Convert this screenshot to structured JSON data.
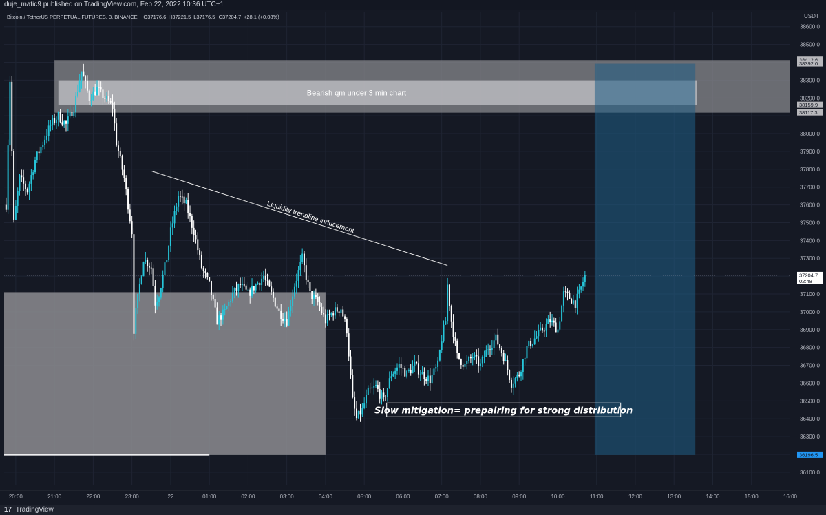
{
  "header": {
    "published_line": "duje_matic9 published on TradingView.com, Feb 22, 2022 10:36 UTC+1"
  },
  "footer": {
    "logo_glyph": "17",
    "brand": "TradingView"
  },
  "colors": {
    "background": "#151924",
    "up_candle": "#26c6da",
    "down_candle": "#ffffff",
    "zone_gray": "#8c8c90",
    "target_blue": "#1f5f86",
    "price_tag": "#2962ff"
  },
  "chart_data": {
    "type": "candlestick",
    "legend": {
      "symbol": "Bitcoin / TetherUS PERPETUAL FUTURES, 3, BINANCE",
      "open": "O37176.6",
      "high": "H37221.5",
      "low": "L37176.5",
      "close": "C37204.7",
      "change": "+28.1 (+0.08%)"
    },
    "currency": "USDT",
    "ylim": [
      36030,
      38680
    ],
    "yticks": [
      36100,
      36200,
      36300,
      36400,
      36500,
      36600,
      36700,
      36800,
      36900,
      37000,
      37100,
      37200,
      37300,
      37400,
      37500,
      37600,
      37700,
      37800,
      37900,
      38000,
      38100,
      38200,
      38300,
      38400,
      38500,
      38600
    ],
    "ytick_labels": [
      "36100.0",
      "",
      "36300.0",
      "36400.0",
      "36500.0",
      "36600.0",
      "36700.0",
      "36800.0",
      "36900.0",
      "37000.0",
      "37100.0",
      "",
      "37300.0",
      "37400.0",
      "37500.0",
      "37600.0",
      "37700.0",
      "37800.0",
      "37900.0",
      "38000.0",
      "",
      "38200.0",
      "38300.0",
      "",
      "38500.0",
      "38600.0"
    ],
    "xtick_labels": [
      "20:00",
      "21:00",
      "22:00",
      "23:00",
      "22",
      "01:00",
      "02:00",
      "03:00",
      "04:00",
      "05:00",
      "06:00",
      "07:00",
      "08:00",
      "09:00",
      "10:00",
      "11:00",
      "12:00",
      "13:00",
      "14:00",
      "15:00",
      "16:00"
    ],
    "xtick_hours": [
      20,
      21,
      22,
      23,
      24,
      25,
      26,
      27,
      28,
      29,
      30,
      31,
      32,
      33,
      34,
      35,
      36,
      37,
      38,
      39,
      40
    ],
    "x_range_hours": [
      19.7,
      40.0
    ],
    "last_hour": 34.7,
    "anchors": [
      [
        19.75,
        37600
      ],
      [
        19.85,
        38300
      ],
      [
        19.95,
        37500
      ],
      [
        20.1,
        37750
      ],
      [
        20.3,
        37680
      ],
      [
        20.5,
        37850
      ],
      [
        20.7,
        37950
      ],
      [
        20.9,
        38050
      ],
      [
        21.1,
        38100
      ],
      [
        21.3,
        38050
      ],
      [
        21.5,
        38150
      ],
      [
        21.7,
        38350
      ],
      [
        21.9,
        38200
      ],
      [
        22.1,
        38250
      ],
      [
        22.3,
        38200
      ],
      [
        22.5,
        38150
      ],
      [
        22.6,
        37950
      ],
      [
        22.8,
        37750
      ],
      [
        23.0,
        37450
      ],
      [
        23.05,
        36900
      ],
      [
        23.1,
        37000
      ],
      [
        23.3,
        37300
      ],
      [
        23.5,
        37250
      ],
      [
        23.6,
        37050
      ],
      [
        23.7,
        37100
      ],
      [
        23.9,
        37300
      ],
      [
        24.0,
        37450
      ],
      [
        24.2,
        37650
      ],
      [
        24.4,
        37600
      ],
      [
        24.6,
        37450
      ],
      [
        24.8,
        37250
      ],
      [
        25.0,
        37150
      ],
      [
        25.2,
        36950
      ],
      [
        25.4,
        37000
      ],
      [
        25.6,
        37100
      ],
      [
        25.8,
        37150
      ],
      [
        26.0,
        37100
      ],
      [
        26.2,
        37150
      ],
      [
        26.4,
        37200
      ],
      [
        26.6,
        37100
      ],
      [
        26.8,
        37000
      ],
      [
        27.0,
        36950
      ],
      [
        27.2,
        37150
      ],
      [
        27.4,
        37300
      ],
      [
        27.6,
        37100
      ],
      [
        27.8,
        37050
      ],
      [
        28.0,
        36950
      ],
      [
        28.2,
        37000
      ],
      [
        28.4,
        37020
      ],
      [
        28.55,
        36900
      ],
      [
        28.7,
        36500
      ],
      [
        28.8,
        36400
      ],
      [
        28.95,
        36450
      ],
      [
        29.1,
        36550
      ],
      [
        29.3,
        36580
      ],
      [
        29.5,
        36500
      ],
      [
        29.7,
        36650
      ],
      [
        29.9,
        36700
      ],
      [
        30.1,
        36650
      ],
      [
        30.3,
        36700
      ],
      [
        30.5,
        36650
      ],
      [
        30.7,
        36620
      ],
      [
        30.9,
        36700
      ],
      [
        31.0,
        36850
      ],
      [
        31.1,
        36950
      ],
      [
        31.15,
        37150
      ],
      [
        31.25,
        36950
      ],
      [
        31.4,
        36750
      ],
      [
        31.6,
        36700
      ],
      [
        31.8,
        36750
      ],
      [
        32.0,
        36700
      ],
      [
        32.2,
        36800
      ],
      [
        32.4,
        36850
      ],
      [
        32.6,
        36750
      ],
      [
        32.8,
        36600
      ],
      [
        33.0,
        36650
      ],
      [
        33.2,
        36800
      ],
      [
        33.4,
        36850
      ],
      [
        33.6,
        36900
      ],
      [
        33.8,
        36950
      ],
      [
        34.0,
        36900
      ],
      [
        34.15,
        37100
      ],
      [
        34.3,
        37080
      ],
      [
        34.45,
        37050
      ],
      [
        34.55,
        37100
      ],
      [
        34.7,
        37205
      ]
    ],
    "zones": [
      {
        "name": "upper-qm-zone",
        "x": [
          21.0,
          40.0
        ],
        "y": [
          38117.3,
          38412.6
        ]
      },
      {
        "name": "inner-qm-zone",
        "x": [
          21.1,
          37.6
        ],
        "y": [
          38159.9,
          38299
        ]
      },
      {
        "name": "lower-demand-zone",
        "x": [
          19.7,
          28.0
        ],
        "y": [
          36196.5,
          37110
        ]
      },
      {
        "name": "target-box",
        "x": [
          34.95,
          37.55
        ],
        "y": [
          36196.5,
          38392.0
        ]
      }
    ],
    "trendline": {
      "x": [
        23.5,
        31.15
      ],
      "y": [
        37790,
        37260
      ]
    },
    "lower_base_line": {
      "x": [
        19.7,
        25.0
      ],
      "y": 36196.5
    },
    "annotations": [
      {
        "name": "zone-label",
        "text": "Bearish qm under 3 min chart",
        "x": 28.8,
        "y": 38229
      },
      {
        "name": "trendline-label",
        "text": "Liquidity trendline inducement",
        "x": 27.6,
        "y": 37520
      },
      {
        "name": "mitigation-label",
        "text": "Slow mitigation= prepairing for strong distribution",
        "x": 32.6,
        "y": 36450
      }
    ],
    "price_tags": [
      {
        "value": 38412.6,
        "label": "38412.6",
        "style": "gray"
      },
      {
        "value": 38392.0,
        "label": "38392.0",
        "style": "gray"
      },
      {
        "value": 38159.9,
        "label": "38159.9",
        "style": "gray"
      },
      {
        "value": 38117.3,
        "label": "38117.3",
        "style": "gray"
      },
      {
        "value": 37204.7,
        "label": "37204.7",
        "style": "white",
        "sub": "02:48"
      },
      {
        "value": 36196.5,
        "label": "36196.5",
        "style": "blue"
      }
    ],
    "current_price": 37204.7
  }
}
